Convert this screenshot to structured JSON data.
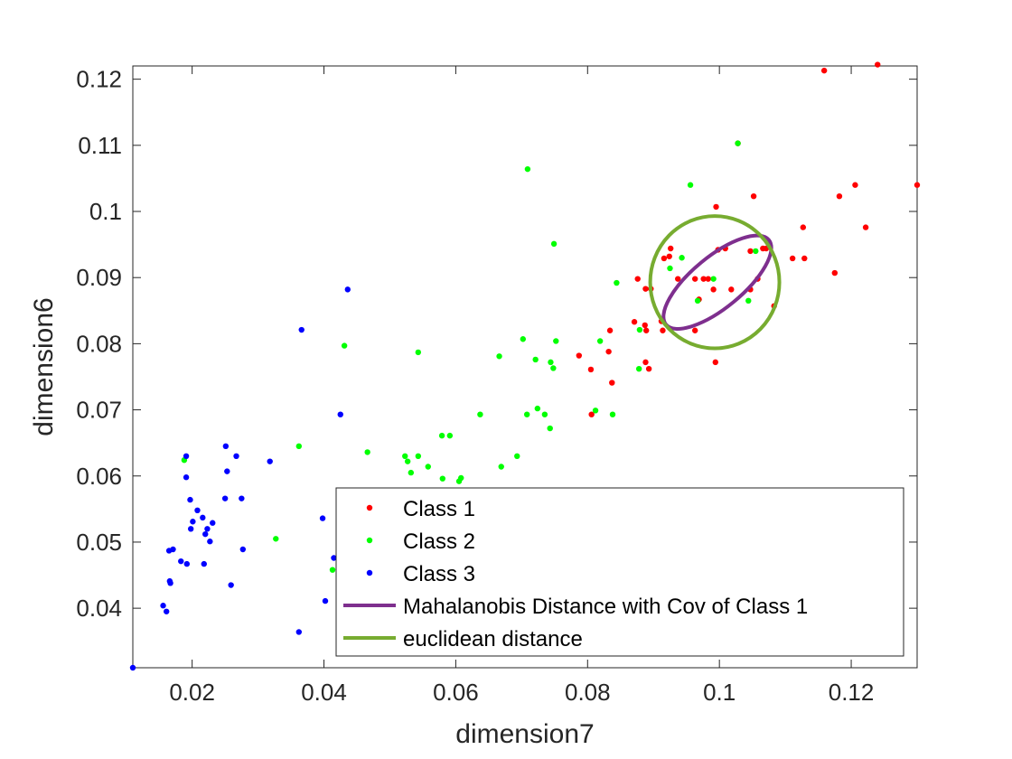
{
  "chart_data": {
    "type": "scatter",
    "title": "",
    "xlabel": "dimension7",
    "ylabel": "dimension6",
    "xlim": [
      0.011,
      0.13
    ],
    "ylim": [
      0.031,
      0.122
    ],
    "xticks": [
      0.02,
      0.04,
      0.06,
      0.08,
      0.1,
      0.12
    ],
    "xtick_labels": [
      "0.02",
      "0.04",
      "0.06",
      "0.08",
      "0.1",
      "0.12"
    ],
    "yticks": [
      0.04,
      0.05,
      0.06,
      0.07,
      0.08,
      0.09,
      0.1,
      0.11,
      0.12
    ],
    "ytick_labels": [
      "0.04",
      "0.05",
      "0.06",
      "0.07",
      "0.08",
      "0.09",
      "0.1",
      "0.11",
      "0.12"
    ],
    "grid": false,
    "legend_position": "bottom-right",
    "series": [
      {
        "name": "Class 1",
        "color": "#ff0000",
        "points": [
          [
            0.1159,
            0.1213
          ],
          [
            0.124,
            0.1222
          ],
          [
            0.1028,
            0.1103
          ],
          [
            0.0995,
            0.1007
          ],
          [
            0.1052,
            0.1023
          ],
          [
            0.1182,
            0.1023
          ],
          [
            0.1206,
            0.104
          ],
          [
            0.13,
            0.104
          ],
          [
            0.1127,
            0.0976
          ],
          [
            0.1222,
            0.0976
          ],
          [
            0.0916,
            0.0929
          ],
          [
            0.0924,
            0.0932
          ],
          [
            0.0926,
            0.0944
          ],
          [
            0.0976,
            0.0898
          ],
          [
            0.0983,
            0.0898
          ],
          [
            0.0998,
            0.0942
          ],
          [
            0.1009,
            0.0944
          ],
          [
            0.1047,
            0.094
          ],
          [
            0.1066,
            0.0944
          ],
          [
            0.1071,
            0.0944
          ],
          [
            0.1058,
            0.0898
          ],
          [
            0.1111,
            0.0929
          ],
          [
            0.1129,
            0.0929
          ],
          [
            0.1175,
            0.0907
          ],
          [
            0.0876,
            0.0898
          ],
          [
            0.0888,
            0.0883
          ],
          [
            0.0896,
            0.0883
          ],
          [
            0.0937,
            0.0898
          ],
          [
            0.0991,
            0.0882
          ],
          [
            0.1018,
            0.0882
          ],
          [
            0.1047,
            0.0882
          ],
          [
            0.1083,
            0.0857
          ],
          [
            0.0871,
            0.0833
          ],
          [
            0.0887,
            0.0828
          ],
          [
            0.0889,
            0.082
          ],
          [
            0.0912,
            0.0834
          ],
          [
            0.0914,
            0.082
          ],
          [
            0.0963,
            0.082
          ],
          [
            0.0834,
            0.082
          ],
          [
            0.0832,
            0.0788
          ],
          [
            0.0787,
            0.0782
          ],
          [
            0.0805,
            0.0761
          ],
          [
            0.0837,
            0.0741
          ],
          [
            0.0888,
            0.0772
          ],
          [
            0.0893,
            0.0762
          ],
          [
            0.0994,
            0.0772
          ],
          [
            0.0806,
            0.0693
          ],
          [
            0.0969,
            0.0867
          ],
          [
            0.0963,
            0.0898
          ]
        ]
      },
      {
        "name": "Class 2",
        "color": "#00ff00",
        "points": [
          [
            0.0709,
            0.1064
          ],
          [
            0.1028,
            0.1103
          ],
          [
            0.0956,
            0.104
          ],
          [
            0.0749,
            0.0951
          ],
          [
            0.1055,
            0.094
          ],
          [
            0.0943,
            0.093
          ],
          [
            0.0925,
            0.0914
          ],
          [
            0.0844,
            0.0892
          ],
          [
            0.0991,
            0.0898
          ],
          [
            0.0967,
            0.0865
          ],
          [
            0.1044,
            0.0865
          ],
          [
            0.0879,
            0.0821
          ],
          [
            0.0702,
            0.0807
          ],
          [
            0.0752,
            0.0804
          ],
          [
            0.0819,
            0.0804
          ],
          [
            0.0431,
            0.0797
          ],
          [
            0.0543,
            0.0787
          ],
          [
            0.0666,
            0.0781
          ],
          [
            0.0721,
            0.0776
          ],
          [
            0.0744,
            0.0772
          ],
          [
            0.0748,
            0.0763
          ],
          [
            0.0878,
            0.0762
          ],
          [
            0.0724,
            0.0702
          ],
          [
            0.0708,
            0.0693
          ],
          [
            0.0735,
            0.0693
          ],
          [
            0.0637,
            0.0693
          ],
          [
            0.0812,
            0.0699
          ],
          [
            0.0838,
            0.0693
          ],
          [
            0.0743,
            0.0672
          ],
          [
            0.0579,
            0.0661
          ],
          [
            0.0591,
            0.0661
          ],
          [
            0.0362,
            0.0645
          ],
          [
            0.0466,
            0.0636
          ],
          [
            0.0523,
            0.063
          ],
          [
            0.0543,
            0.063
          ],
          [
            0.0527,
            0.0622
          ],
          [
            0.0558,
            0.0614
          ],
          [
            0.0669,
            0.0614
          ],
          [
            0.0693,
            0.063
          ],
          [
            0.0532,
            0.0605
          ],
          [
            0.058,
            0.0596
          ],
          [
            0.0605,
            0.0592
          ],
          [
            0.0608,
            0.0597
          ],
          [
            0.0188,
            0.0624
          ],
          [
            0.0327,
            0.0505
          ],
          [
            0.0413,
            0.0458
          ]
        ]
      },
      {
        "name": "Class 3",
        "color": "#0000ff",
        "points": [
          [
            0.0436,
            0.0882
          ],
          [
            0.0366,
            0.0821
          ],
          [
            0.0425,
            0.0693
          ],
          [
            0.0251,
            0.0645
          ],
          [
            0.0267,
            0.063
          ],
          [
            0.0191,
            0.063
          ],
          [
            0.0318,
            0.0622
          ],
          [
            0.0253,
            0.0607
          ],
          [
            0.0191,
            0.0598
          ],
          [
            0.0197,
            0.0564
          ],
          [
            0.025,
            0.0566
          ],
          [
            0.0275,
            0.0566
          ],
          [
            0.0208,
            0.0548
          ],
          [
            0.0216,
            0.0537
          ],
          [
            0.0201,
            0.0531
          ],
          [
            0.0231,
            0.0529
          ],
          [
            0.0198,
            0.052
          ],
          [
            0.0223,
            0.052
          ],
          [
            0.022,
            0.0512
          ],
          [
            0.0227,
            0.0501
          ],
          [
            0.0165,
            0.0487
          ],
          [
            0.0171,
            0.0489
          ],
          [
            0.0277,
            0.0489
          ],
          [
            0.0183,
            0.0471
          ],
          [
            0.0192,
            0.0467
          ],
          [
            0.0218,
            0.0467
          ],
          [
            0.0398,
            0.0536
          ],
          [
            0.0415,
            0.0476
          ],
          [
            0.0166,
            0.0441
          ],
          [
            0.0167,
            0.0438
          ],
          [
            0.0259,
            0.0435
          ],
          [
            0.0402,
            0.0411
          ],
          [
            0.0156,
            0.0404
          ],
          [
            0.0161,
            0.0395
          ],
          [
            0.0362,
            0.0364
          ],
          [
            0.011,
            0.031
          ]
        ]
      }
    ],
    "curves": [
      {
        "name": "Mahalanobis Distance with Cov of Class 1",
        "color": "#7e2f8e",
        "shape": "ellipse",
        "center": [
          0.0995,
          0.0893
        ],
        "endpoint_a": [
          0.0919,
          0.0829
        ],
        "endpoint_b": [
          0.1075,
          0.0957
        ],
        "minor_half_width": 0.0025
      },
      {
        "name": "euclidean distance",
        "color": "#77ac30",
        "shape": "ellipse",
        "center": [
          0.0993,
          0.0893
        ],
        "rx": 0.0098,
        "ry": 0.01
      }
    ],
    "legend": [
      {
        "label": "Class 1",
        "marker": "point",
        "color": "#ff0000"
      },
      {
        "label": "Class 2",
        "marker": "point",
        "color": "#00ff00"
      },
      {
        "label": "Class 3",
        "marker": "point",
        "color": "#0000ff"
      },
      {
        "label": "Mahalanobis Distance with Cov of Class 1",
        "marker": "line",
        "color": "#7e2f8e"
      },
      {
        "label": "euclidean distance",
        "marker": "line",
        "color": "#77ac30"
      }
    ]
  }
}
